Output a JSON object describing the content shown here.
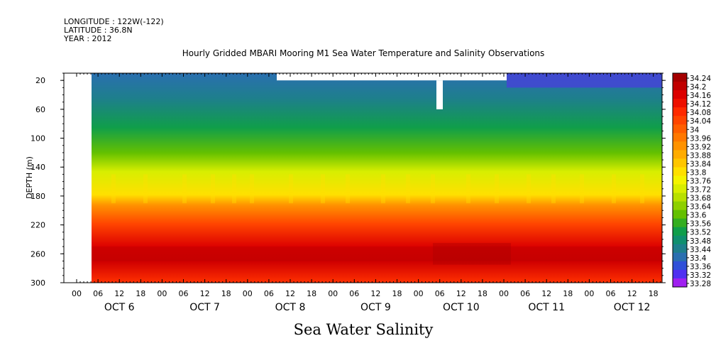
{
  "header": {
    "longitude": "LONGITUDE : 122W(-122)",
    "latitude": "LATITUDE : 36.8N",
    "year": "YEAR : 2012",
    "title": "Hourly Gridded MBARI Mooring M1 Sea Water Temperature and Salinity Observations",
    "subtitle": "Sea Water Salinity"
  },
  "chart_data": {
    "type": "heatmap",
    "title": "Hourly Gridded MBARI Mooring M1 Sea Water Temperature and Salinity Observations",
    "subtitle": "Sea Water Salinity",
    "xlabel": "",
    "ylabel": "DEPTH (m)",
    "y_ticks": [
      20,
      60,
      100,
      140,
      180,
      220,
      260,
      300
    ],
    "y_range": [
      10,
      300
    ],
    "y_inverted": true,
    "x_hour_ticks": [
      "00",
      "06",
      "12",
      "18",
      "00",
      "06",
      "12",
      "18",
      "00",
      "06",
      "12",
      "18",
      "00",
      "06",
      "12",
      "18",
      "00",
      "06",
      "12",
      "18",
      "00",
      "06",
      "12",
      "18",
      "00",
      "06",
      "12",
      "18"
    ],
    "x_day_labels": [
      "OCT  6",
      "OCT  7",
      "OCT  8",
      "OCT  9",
      "OCT 10",
      "OCT 11",
      "OCT 12"
    ],
    "colorbar_levels": [
      "34.24",
      "34.2",
      "34.16",
      "34.12",
      "34.08",
      "34.04",
      "34",
      "33.96",
      "33.92",
      "33.88",
      "33.84",
      "33.8",
      "33.76",
      "33.72",
      "33.68",
      "33.64",
      "33.6",
      "33.56",
      "33.52",
      "33.48",
      "33.44",
      "33.4",
      "33.36",
      "33.32",
      "33.28"
    ],
    "colorbar_colors": [
      "#a50000",
      "#c00000",
      "#dc0000",
      "#ee1000",
      "#ff2a00",
      "#ff4400",
      "#ff5e00",
      "#ff7800",
      "#ff9200",
      "#ffac00",
      "#ffc600",
      "#ffe000",
      "#f4f400",
      "#d8ee00",
      "#b8e000",
      "#8ed000",
      "#64c000",
      "#34ae20",
      "#109e4a",
      "#108f6e",
      "#1e7f8c",
      "#2a6fb0",
      "#3050d8",
      "#5030f0",
      "#a020f0"
    ],
    "profile": [
      {
        "depth": 10,
        "salinity": 33.45
      },
      {
        "depth": 40,
        "salinity": 33.52
      },
      {
        "depth": 80,
        "salinity": 33.6
      },
      {
        "depth": 120,
        "salinity": 33.7
      },
      {
        "depth": 160,
        "salinity": 33.82
      },
      {
        "depth": 180,
        "salinity": 33.95
      },
      {
        "depth": 220,
        "salinity": 34.1
      },
      {
        "depth": 260,
        "salinity": 34.2
      },
      {
        "depth": 300,
        "salinity": 34.08
      }
    ],
    "missing_data_note": ""
  }
}
